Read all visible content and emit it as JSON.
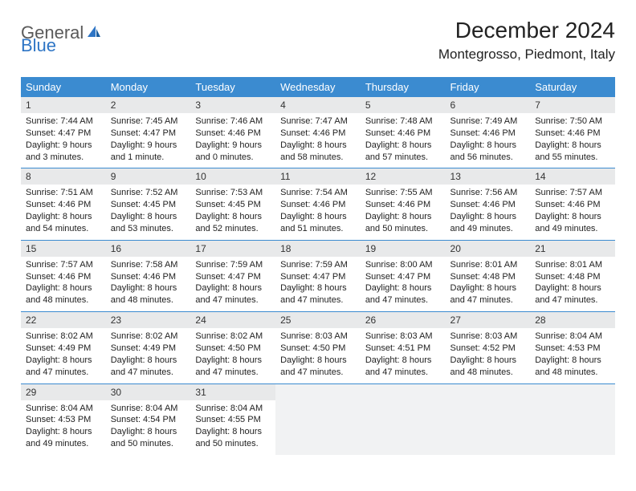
{
  "brand": {
    "name_part1": "General",
    "name_part2": "Blue",
    "color_gray": "#5a5a5a",
    "color_blue": "#2e75c5"
  },
  "header": {
    "title": "December 2024",
    "location": "Montegrosso, Piedmont, Italy"
  },
  "style": {
    "header_bg": "#3b8bd0",
    "header_fg": "#ffffff",
    "daynum_bg": "#e8e9ea",
    "border_color": "#3b8bd0",
    "empty_bg": "#f1f2f3",
    "body_font_size": 11,
    "header_font_size": 13,
    "title_font_size": 28,
    "location_font_size": 17
  },
  "weekdays": [
    "Sunday",
    "Monday",
    "Tuesday",
    "Wednesday",
    "Thursday",
    "Friday",
    "Saturday"
  ],
  "weeks": [
    [
      {
        "n": "1",
        "sunrise": "7:44 AM",
        "sunset": "4:47 PM",
        "daylight": "9 hours and 3 minutes."
      },
      {
        "n": "2",
        "sunrise": "7:45 AM",
        "sunset": "4:47 PM",
        "daylight": "9 hours and 1 minute."
      },
      {
        "n": "3",
        "sunrise": "7:46 AM",
        "sunset": "4:46 PM",
        "daylight": "9 hours and 0 minutes."
      },
      {
        "n": "4",
        "sunrise": "7:47 AM",
        "sunset": "4:46 PM",
        "daylight": "8 hours and 58 minutes."
      },
      {
        "n": "5",
        "sunrise": "7:48 AM",
        "sunset": "4:46 PM",
        "daylight": "8 hours and 57 minutes."
      },
      {
        "n": "6",
        "sunrise": "7:49 AM",
        "sunset": "4:46 PM",
        "daylight": "8 hours and 56 minutes."
      },
      {
        "n": "7",
        "sunrise": "7:50 AM",
        "sunset": "4:46 PM",
        "daylight": "8 hours and 55 minutes."
      }
    ],
    [
      {
        "n": "8",
        "sunrise": "7:51 AM",
        "sunset": "4:46 PM",
        "daylight": "8 hours and 54 minutes."
      },
      {
        "n": "9",
        "sunrise": "7:52 AM",
        "sunset": "4:45 PM",
        "daylight": "8 hours and 53 minutes."
      },
      {
        "n": "10",
        "sunrise": "7:53 AM",
        "sunset": "4:45 PM",
        "daylight": "8 hours and 52 minutes."
      },
      {
        "n": "11",
        "sunrise": "7:54 AM",
        "sunset": "4:46 PM",
        "daylight": "8 hours and 51 minutes."
      },
      {
        "n": "12",
        "sunrise": "7:55 AM",
        "sunset": "4:46 PM",
        "daylight": "8 hours and 50 minutes."
      },
      {
        "n": "13",
        "sunrise": "7:56 AM",
        "sunset": "4:46 PM",
        "daylight": "8 hours and 49 minutes."
      },
      {
        "n": "14",
        "sunrise": "7:57 AM",
        "sunset": "4:46 PM",
        "daylight": "8 hours and 49 minutes."
      }
    ],
    [
      {
        "n": "15",
        "sunrise": "7:57 AM",
        "sunset": "4:46 PM",
        "daylight": "8 hours and 48 minutes."
      },
      {
        "n": "16",
        "sunrise": "7:58 AM",
        "sunset": "4:46 PM",
        "daylight": "8 hours and 48 minutes."
      },
      {
        "n": "17",
        "sunrise": "7:59 AM",
        "sunset": "4:47 PM",
        "daylight": "8 hours and 47 minutes."
      },
      {
        "n": "18",
        "sunrise": "7:59 AM",
        "sunset": "4:47 PM",
        "daylight": "8 hours and 47 minutes."
      },
      {
        "n": "19",
        "sunrise": "8:00 AM",
        "sunset": "4:47 PM",
        "daylight": "8 hours and 47 minutes."
      },
      {
        "n": "20",
        "sunrise": "8:01 AM",
        "sunset": "4:48 PM",
        "daylight": "8 hours and 47 minutes."
      },
      {
        "n": "21",
        "sunrise": "8:01 AM",
        "sunset": "4:48 PM",
        "daylight": "8 hours and 47 minutes."
      }
    ],
    [
      {
        "n": "22",
        "sunrise": "8:02 AM",
        "sunset": "4:49 PM",
        "daylight": "8 hours and 47 minutes."
      },
      {
        "n": "23",
        "sunrise": "8:02 AM",
        "sunset": "4:49 PM",
        "daylight": "8 hours and 47 minutes."
      },
      {
        "n": "24",
        "sunrise": "8:02 AM",
        "sunset": "4:50 PM",
        "daylight": "8 hours and 47 minutes."
      },
      {
        "n": "25",
        "sunrise": "8:03 AM",
        "sunset": "4:50 PM",
        "daylight": "8 hours and 47 minutes."
      },
      {
        "n": "26",
        "sunrise": "8:03 AM",
        "sunset": "4:51 PM",
        "daylight": "8 hours and 47 minutes."
      },
      {
        "n": "27",
        "sunrise": "8:03 AM",
        "sunset": "4:52 PM",
        "daylight": "8 hours and 48 minutes."
      },
      {
        "n": "28",
        "sunrise": "8:04 AM",
        "sunset": "4:53 PM",
        "daylight": "8 hours and 48 minutes."
      }
    ],
    [
      {
        "n": "29",
        "sunrise": "8:04 AM",
        "sunset": "4:53 PM",
        "daylight": "8 hours and 49 minutes."
      },
      {
        "n": "30",
        "sunrise": "8:04 AM",
        "sunset": "4:54 PM",
        "daylight": "8 hours and 50 minutes."
      },
      {
        "n": "31",
        "sunrise": "8:04 AM",
        "sunset": "4:55 PM",
        "daylight": "8 hours and 50 minutes."
      },
      null,
      null,
      null,
      null
    ]
  ],
  "labels": {
    "sunrise_prefix": "Sunrise: ",
    "sunset_prefix": "Sunset: ",
    "daylight_prefix": "Daylight: "
  }
}
